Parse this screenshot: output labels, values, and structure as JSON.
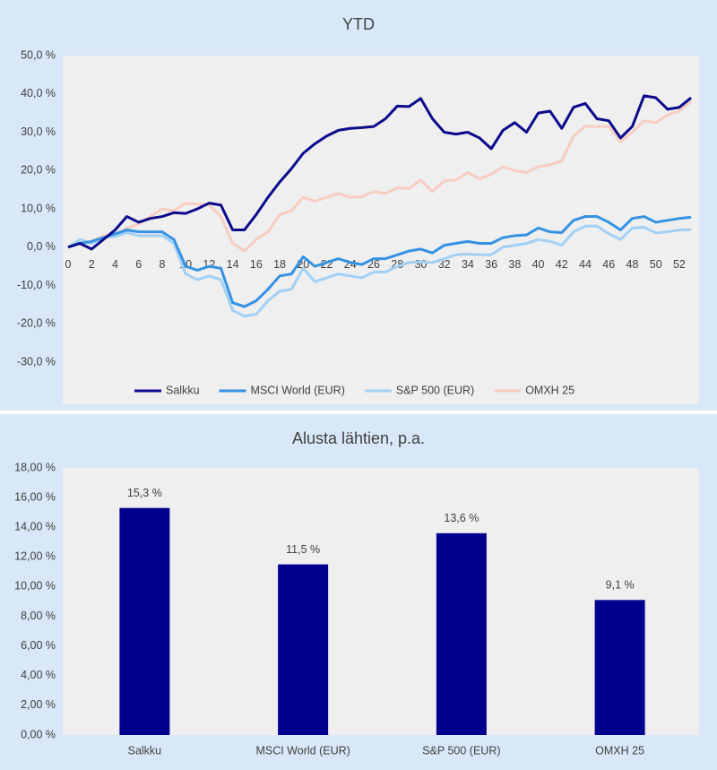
{
  "chart_data": [
    {
      "type": "line",
      "title": "YTD",
      "x": [
        0,
        1,
        2,
        3,
        4,
        5,
        6,
        7,
        8,
        9,
        10,
        11,
        12,
        13,
        14,
        15,
        16,
        17,
        18,
        19,
        20,
        21,
        22,
        23,
        24,
        25,
        26,
        27,
        28,
        29,
        30,
        31,
        32,
        33,
        34,
        35,
        36,
        37,
        38,
        39,
        40,
        41,
        42,
        43,
        44,
        45,
        46,
        47,
        48,
        49,
        50,
        51,
        52,
        53
      ],
      "xlim": [
        0,
        53.3
      ],
      "xticks": [
        0,
        2,
        4,
        6,
        8,
        10,
        12,
        14,
        16,
        18,
        20,
        22,
        24,
        26,
        28,
        30,
        32,
        34,
        36,
        38,
        40,
        42,
        44,
        46,
        48,
        50,
        52
      ],
      "ylim": [
        -30,
        50
      ],
      "yticks": [
        {
          "value": -30,
          "label": "-30,0 %"
        },
        {
          "value": -20,
          "label": "-20,0 %"
        },
        {
          "value": -10,
          "label": "-10,0 %"
        },
        {
          "value": 0,
          "label": "0,0 %"
        },
        {
          "value": 10,
          "label": "10,0 %"
        },
        {
          "value": 20,
          "label": "20,0 %"
        },
        {
          "value": 30,
          "label": "30,0 %"
        },
        {
          "value": 40,
          "label": "40,0 %"
        },
        {
          "value": 50,
          "label": "50,0 %"
        }
      ],
      "legend": "bottom",
      "series": [
        {
          "name": "Salkku",
          "color": "#0b0b8c",
          "values": [
            0,
            1,
            -0.5,
            2,
            4.5,
            8,
            6.5,
            7.5,
            8,
            9,
            8.8,
            10,
            11.5,
            11,
            4.5,
            4.5,
            8.5,
            13,
            17,
            20.5,
            24.5,
            27,
            29,
            30.5,
            31,
            31.2,
            31.5,
            33.5,
            36.8,
            36.7,
            38.8,
            33.5,
            30,
            29.5,
            30,
            28.5,
            25.7,
            30.5,
            32.5,
            30,
            35,
            35.5,
            31,
            36.5,
            37.5,
            33.5,
            33,
            28.5,
            31.5,
            39.5,
            39,
            36,
            36.5,
            39
          ]
        },
        {
          "name": "MSCI World (EUR)",
          "color": "#3592e3",
          "values": [
            0,
            1,
            1.5,
            2.5,
            3.5,
            4.5,
            4,
            4,
            4,
            2,
            -5,
            -6,
            -5,
            -5.5,
            -14.5,
            -15.5,
            -14,
            -11,
            -7.5,
            -7,
            -2.5,
            -5,
            -4,
            -3,
            -4,
            -4.5,
            -3,
            -3,
            -2,
            -1,
            -0.5,
            -1.5,
            0.5,
            1,
            1.5,
            1,
            1,
            2.5,
            3,
            3.2,
            5,
            4,
            3.8,
            7,
            8,
            8,
            6.5,
            4.5,
            7.5,
            8,
            6.5,
            7,
            7.5,
            7.8
          ]
        },
        {
          "name": "S&P 500 (EUR)",
          "color": "#a2d0f5",
          "values": [
            0,
            2,
            1,
            2.5,
            2.8,
            3.8,
            3,
            3,
            3,
            1,
            -7,
            -8.5,
            -7.5,
            -8.5,
            -16.5,
            -18,
            -17.5,
            -14,
            -11.5,
            -11,
            -5.5,
            -9,
            -8,
            -7,
            -7.5,
            -8,
            -6.5,
            -6.5,
            -5,
            -4,
            -3.8,
            -4,
            -3,
            -2,
            -1.8,
            -2,
            -2,
            0,
            0.5,
            1,
            2,
            1.5,
            0.5,
            4,
            5.5,
            5.5,
            3.5,
            2,
            5,
            5.2,
            3.7,
            4,
            4.5,
            4.6
          ]
        },
        {
          "name": "OMXH 25",
          "color": "#f8cdc1",
          "values": [
            0,
            1,
            1.5,
            3,
            3,
            5,
            6,
            8,
            10,
            9.5,
            11.5,
            11.2,
            11,
            8,
            1,
            -1,
            2,
            4,
            8.5,
            9.5,
            13,
            12,
            13,
            14,
            13,
            13.2,
            14.5,
            14,
            15.5,
            15.3,
            17.5,
            14.5,
            17.3,
            17.5,
            19.5,
            17.8,
            19,
            21,
            20,
            19.5,
            21,
            21.5,
            22.5,
            29,
            31.5,
            31.5,
            31.5,
            27.5,
            30,
            33,
            32.5,
            34.5,
            35.5,
            38
          ]
        }
      ]
    },
    {
      "type": "bar",
      "title": "Alusta lähtien, p.a.",
      "categories": [
        "Salkku",
        "MSCI World (EUR)",
        "S&P 500 (EUR)",
        "OMXH 25"
      ],
      "values": [
        15.3,
        11.5,
        13.6,
        9.1
      ],
      "value_labels": [
        "15,3 %",
        "11,5 %",
        "13,6 %",
        "9,1 %"
      ],
      "color": "#00008f",
      "ylim": [
        0,
        18
      ],
      "yticks": [
        {
          "value": 0,
          "label": "0,00 %"
        },
        {
          "value": 2,
          "label": "2,00 %"
        },
        {
          "value": 4,
          "label": "4,00 %"
        },
        {
          "value": 6,
          "label": "6,00 %"
        },
        {
          "value": 8,
          "label": "8,00 %"
        },
        {
          "value": 10,
          "label": "10,00 %"
        },
        {
          "value": 12,
          "label": "12,00 %"
        },
        {
          "value": 14,
          "label": "14,00 %"
        },
        {
          "value": 16,
          "label": "16,00 %"
        },
        {
          "value": 18,
          "label": "18,00 %"
        }
      ]
    }
  ]
}
